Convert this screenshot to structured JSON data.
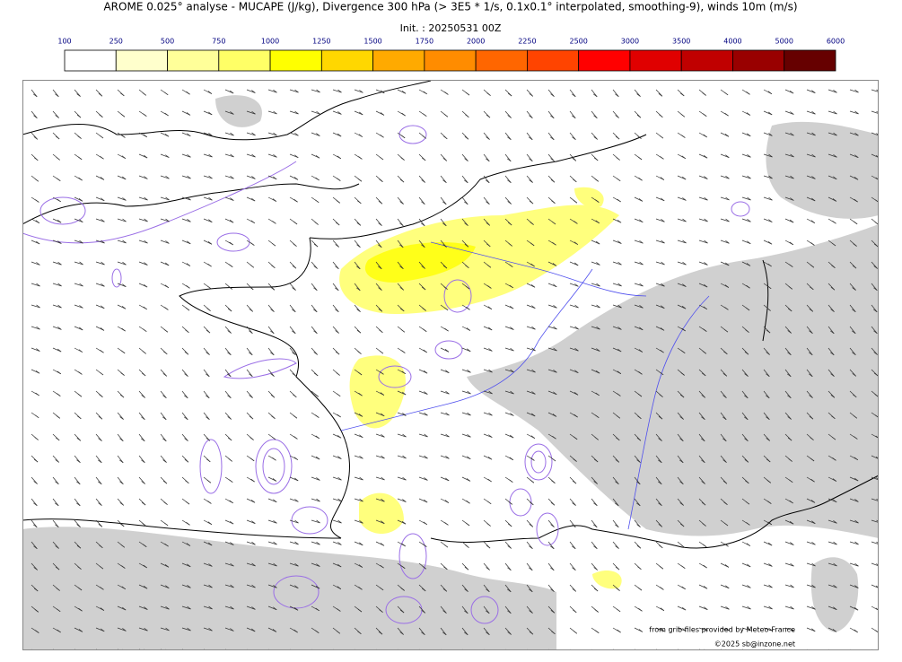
{
  "header": {
    "title": "AROME 0.025° analyse - MUCAPE (J/kg), Divergence 300 hPa (> 3E5 * 1/s, 0.1x0.1° interpolated, smoothing-9), winds 10m (m/s)",
    "subtitle": "Init. : 20250531 00Z"
  },
  "colorbar": {
    "ticks": [
      100,
      250,
      500,
      750,
      1000,
      1250,
      1500,
      1750,
      2000,
      2250,
      2500,
      3000,
      3500,
      4000,
      5000,
      6000
    ],
    "colors": [
      "#ffffff",
      "#ffffcc",
      "#ffff99",
      "#ffff66",
      "#ffff00",
      "#ffd700",
      "#ffaa00",
      "#ff8c00",
      "#ff6600",
      "#ff4400",
      "#ff0000",
      "#e00000",
      "#c00000",
      "#990000",
      "#660000"
    ]
  },
  "credits": {
    "source": "from grib files provided by Meteo-France",
    "copyright": "©2025 sb@inzone.net"
  }
}
